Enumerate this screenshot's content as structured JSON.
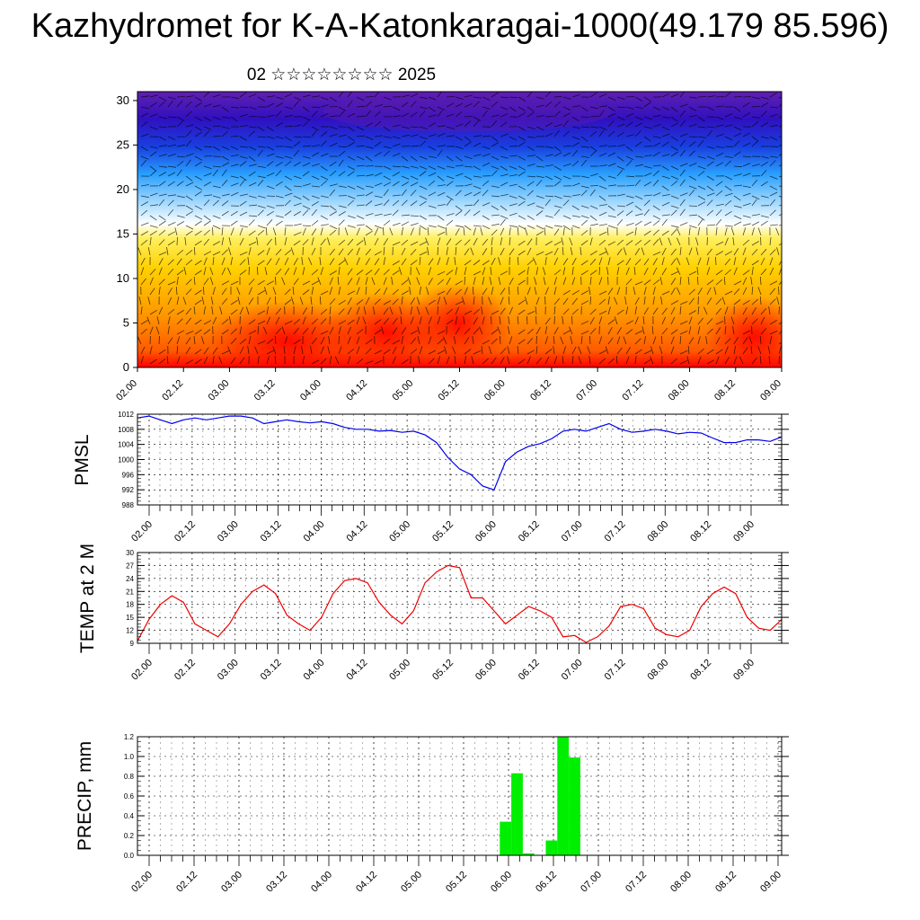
{
  "title": "Kazhydromet for K-A-Katonkaragai-1000(49.179 85.596)",
  "subtitle": "02 ☆☆☆☆☆☆☆☆ 2025",
  "x_ticks": [
    "02.00",
    "02.12",
    "03.00",
    "03.12",
    "04.00",
    "04.12",
    "05.00",
    "05.12",
    "06.00",
    "06.12",
    "07.00",
    "07.12",
    "08.00",
    "08.12",
    "09.00"
  ],
  "chart_data": [
    {
      "type": "heatmap",
      "title": "",
      "xlabel": "",
      "ylabel": "",
      "ylim": [
        0,
        31
      ],
      "yticks": [
        0,
        5,
        10,
        15,
        20,
        25,
        30
      ],
      "x_categories": [
        "02.00",
        "02.12",
        "03.00",
        "03.12",
        "04.00",
        "04.12",
        "05.00",
        "05.12",
        "06.00",
        "06.12",
        "07.00",
        "07.12",
        "08.00",
        "08.12",
        "09.00"
      ],
      "colormap": [
        "#ff0000",
        "#ff5a00",
        "#ff9a00",
        "#ffd000",
        "#fff060",
        "#ffffff",
        "#a0d8ff",
        "#2aa0ff",
        "#1840e0",
        "#3010c0",
        "#6020b0"
      ],
      "overlay": "wind vectors"
    },
    {
      "type": "line",
      "ylabel": "PMSL",
      "ylim": [
        988,
        1012
      ],
      "yticks": [
        988,
        992,
        996,
        1000,
        1004,
        1008,
        1012
      ],
      "line_color": "#0000ee",
      "x": [
        0,
        3,
        6,
        9,
        12,
        15,
        18,
        21,
        24,
        27,
        30,
        33,
        36,
        39,
        42,
        45,
        48,
        51,
        54,
        57,
        60,
        63,
        66,
        69,
        72,
        75,
        78,
        81,
        84,
        87,
        90,
        93,
        96,
        99,
        102,
        105,
        108,
        111,
        114,
        117,
        120,
        123,
        126,
        129,
        132,
        135,
        138,
        141,
        144,
        147,
        150,
        153,
        156,
        159,
        162,
        165,
        168
      ],
      "values": [
        1011,
        1011.5,
        1010.5,
        1009.5,
        1010.5,
        1011,
        1010.5,
        1011,
        1011.5,
        1011.5,
        1011,
        1009.5,
        1010,
        1010.5,
        1010,
        1009.7,
        1010,
        1009.5,
        1008.5,
        1008,
        1008,
        1007.5,
        1007.7,
        1007.2,
        1007.5,
        1006.5,
        1004.5,
        1000.5,
        997.5,
        996,
        993,
        992,
        999.5,
        1002,
        1003.5,
        1004.2,
        1005.5,
        1007.5,
        1008,
        1007.5,
        1008.5,
        1009.5,
        1008,
        1007.2,
        1007.5,
        1008,
        1007.5,
        1006.8,
        1007.2,
        1007,
        1005.7,
        1004.5,
        1004.5,
        1005.2,
        1005.2,
        1004.8,
        1006
      ]
    },
    {
      "type": "line",
      "ylabel": "TEMP at 2 M",
      "ylim": [
        9,
        30
      ],
      "yticks": [
        9,
        12,
        15,
        18,
        21,
        24,
        27,
        30
      ],
      "line_color": "#ee0000",
      "x": [
        0,
        3,
        6,
        9,
        12,
        15,
        18,
        21,
        24,
        27,
        30,
        33,
        36,
        39,
        42,
        45,
        48,
        51,
        54,
        57,
        60,
        63,
        66,
        69,
        72,
        75,
        78,
        81,
        84,
        87,
        90,
        93,
        96,
        99,
        102,
        105,
        108,
        111,
        114,
        117,
        120,
        123,
        126,
        129,
        132,
        135,
        138,
        141,
        144,
        147,
        150,
        153,
        156,
        159,
        162,
        165,
        168
      ],
      "values": [
        9.5,
        14.5,
        18,
        20,
        18.5,
        13.5,
        12,
        10.5,
        13.5,
        18,
        21,
        22.5,
        20.5,
        15.5,
        13.5,
        12,
        15,
        20.5,
        23.5,
        24,
        23,
        18.5,
        15.5,
        13.5,
        16.5,
        23,
        25.5,
        27,
        26.5,
        19.5,
        19.5,
        16.5,
        13.5,
        15.5,
        17.5,
        16.5,
        15,
        10.5,
        10.8,
        9.2,
        10.5,
        13,
        17.5,
        18,
        17,
        12.5,
        11,
        10.5,
        12,
        17.5,
        20.5,
        22,
        20.5,
        15,
        12.5,
        12,
        14.5
      ]
    },
    {
      "type": "bar",
      "ylabel": "PRECIP, mm",
      "ylim": [
        0,
        1.2
      ],
      "yticks": [
        0.0,
        0.2,
        0.4,
        0.6,
        0.8,
        1.0,
        1.2
      ],
      "bar_color": "#00ee00",
      "x": [
        96,
        99,
        102,
        108,
        111,
        114
      ],
      "values": [
        0.34,
        0.83,
        0.02,
        0.15,
        1.2,
        0.99
      ]
    }
  ]
}
